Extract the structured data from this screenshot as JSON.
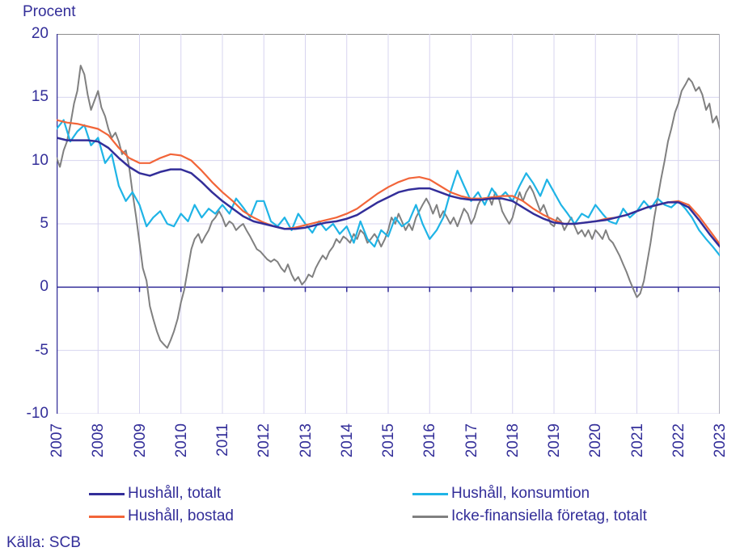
{
  "chart": {
    "type": "line",
    "y_title": "Procent",
    "source_label": "Källa: SCB",
    "background_color": "#ffffff",
    "grid_color": "#d7d4ef",
    "axis_color": "#332e99",
    "text_color": "#332e99",
    "plot_border_color": "#8c8c8c",
    "font_size": 19,
    "line_width": 2.2,
    "ylim": [
      -10,
      20
    ],
    "ytick_step": 5,
    "x_range": [
      2007,
      2023
    ],
    "x_categories": [
      "2007",
      "2008",
      "2009",
      "2010",
      "2011",
      "2012",
      "2013",
      "2014",
      "2015",
      "2016",
      "2017",
      "2018",
      "2019",
      "2020",
      "2021",
      "2022",
      "2023"
    ],
    "legend_position": "bottom",
    "series": [
      {
        "id": "hushall_totalt",
        "label": "Hushåll, totalt",
        "color": "#332e99",
        "line_width": 2.5,
        "x": [
          2007.0,
          2007.25,
          2007.5,
          2007.75,
          2008.0,
          2008.25,
          2008.5,
          2008.75,
          2009.0,
          2009.25,
          2009.5,
          2009.75,
          2010.0,
          2010.25,
          2010.5,
          2010.75,
          2011.0,
          2011.25,
          2011.5,
          2011.75,
          2012.0,
          2012.25,
          2012.5,
          2012.75,
          2013.0,
          2013.25,
          2013.5,
          2013.75,
          2014.0,
          2014.25,
          2014.5,
          2014.75,
          2015.0,
          2015.25,
          2015.5,
          2015.75,
          2016.0,
          2016.25,
          2016.5,
          2016.75,
          2017.0,
          2017.25,
          2017.5,
          2017.75,
          2018.0,
          2018.25,
          2018.5,
          2018.75,
          2019.0,
          2019.25,
          2019.5,
          2019.75,
          2020.0,
          2020.25,
          2020.5,
          2020.75,
          2021.0,
          2021.25,
          2021.5,
          2021.75,
          2022.0,
          2022.25,
          2022.5,
          2022.75,
          2023.0
        ],
        "y": [
          11.8,
          11.6,
          11.6,
          11.6,
          11.5,
          11.0,
          10.2,
          9.5,
          9.0,
          8.8,
          9.1,
          9.3,
          9.3,
          9.0,
          8.3,
          7.5,
          6.8,
          6.2,
          5.6,
          5.2,
          5.0,
          4.8,
          4.6,
          4.6,
          4.7,
          4.9,
          5.1,
          5.2,
          5.4,
          5.7,
          6.2,
          6.7,
          7.1,
          7.5,
          7.7,
          7.8,
          7.8,
          7.5,
          7.2,
          7.0,
          6.9,
          6.9,
          7.0,
          7.0,
          6.8,
          6.3,
          5.8,
          5.4,
          5.1,
          5.0,
          5.0,
          5.1,
          5.2,
          5.3,
          5.5,
          5.7,
          6.0,
          6.3,
          6.5,
          6.7,
          6.7,
          6.3,
          5.3,
          4.2,
          3.2
        ]
      },
      {
        "id": "hushall_konsumtion",
        "label": "Hushåll, konsumtion",
        "color": "#1fb4e6",
        "line_width": 2.2,
        "x": [
          2007.0,
          2007.17,
          2007.33,
          2007.5,
          2007.67,
          2007.83,
          2008.0,
          2008.17,
          2008.33,
          2008.5,
          2008.67,
          2008.83,
          2009.0,
          2009.17,
          2009.33,
          2009.5,
          2009.67,
          2009.83,
          2010.0,
          2010.17,
          2010.33,
          2010.5,
          2010.67,
          2010.83,
          2011.0,
          2011.17,
          2011.33,
          2011.5,
          2011.67,
          2011.83,
          2012.0,
          2012.17,
          2012.33,
          2012.5,
          2012.67,
          2012.83,
          2013.0,
          2013.17,
          2013.33,
          2013.5,
          2013.67,
          2013.83,
          2014.0,
          2014.17,
          2014.33,
          2014.5,
          2014.67,
          2014.83,
          2015.0,
          2015.17,
          2015.33,
          2015.5,
          2015.67,
          2015.83,
          2016.0,
          2016.17,
          2016.33,
          2016.5,
          2016.67,
          2016.83,
          2017.0,
          2017.17,
          2017.33,
          2017.5,
          2017.67,
          2017.83,
          2018.0,
          2018.17,
          2018.33,
          2018.5,
          2018.67,
          2018.83,
          2019.0,
          2019.17,
          2019.33,
          2019.5,
          2019.67,
          2019.83,
          2020.0,
          2020.17,
          2020.33,
          2020.5,
          2020.67,
          2020.83,
          2021.0,
          2021.17,
          2021.33,
          2021.5,
          2021.67,
          2021.83,
          2022.0,
          2022.17,
          2022.33,
          2022.5,
          2022.67,
          2022.83,
          2023.0
        ],
        "y": [
          12.5,
          13.2,
          11.5,
          12.3,
          12.8,
          11.2,
          11.8,
          9.8,
          10.5,
          8.0,
          6.8,
          7.5,
          6.5,
          4.8,
          5.5,
          6.0,
          5.0,
          4.8,
          5.8,
          5.2,
          6.5,
          5.5,
          6.2,
          5.8,
          6.5,
          5.8,
          7.0,
          6.3,
          5.5,
          6.8,
          6.8,
          5.2,
          4.8,
          5.5,
          4.5,
          5.8,
          5.0,
          4.3,
          5.2,
          4.5,
          5.0,
          4.2,
          4.8,
          3.5,
          5.2,
          3.8,
          3.2,
          4.5,
          4.0,
          5.5,
          4.8,
          5.2,
          6.5,
          5.0,
          3.8,
          4.5,
          5.5,
          7.5,
          9.2,
          8.0,
          6.8,
          7.5,
          6.5,
          7.8,
          7.0,
          7.5,
          6.8,
          8.0,
          9.0,
          8.2,
          7.2,
          8.5,
          7.5,
          6.5,
          5.8,
          5.0,
          5.8,
          5.5,
          6.5,
          5.8,
          5.2,
          5.0,
          6.2,
          5.5,
          6.0,
          6.8,
          6.2,
          7.0,
          6.5,
          6.3,
          6.8,
          6.2,
          5.5,
          4.5,
          3.8,
          3.2,
          2.5
        ]
      },
      {
        "id": "hushall_bostad",
        "label": "Hushåll, bostad",
        "color": "#f26539",
        "line_width": 2.2,
        "x": [
          2007.0,
          2007.25,
          2007.5,
          2007.75,
          2008.0,
          2008.25,
          2008.5,
          2008.75,
          2009.0,
          2009.25,
          2009.5,
          2009.75,
          2010.0,
          2010.25,
          2010.5,
          2010.75,
          2011.0,
          2011.25,
          2011.5,
          2011.75,
          2012.0,
          2012.25,
          2012.5,
          2012.75,
          2013.0,
          2013.25,
          2013.5,
          2013.75,
          2014.0,
          2014.25,
          2014.5,
          2014.75,
          2015.0,
          2015.25,
          2015.5,
          2015.75,
          2016.0,
          2016.25,
          2016.5,
          2016.75,
          2017.0,
          2017.25,
          2017.5,
          2017.75,
          2018.0,
          2018.25,
          2018.5,
          2018.75,
          2019.0,
          2019.25,
          2019.5,
          2019.75,
          2020.0,
          2020.25,
          2020.5,
          2020.75,
          2021.0,
          2021.25,
          2021.5,
          2021.75,
          2022.0,
          2022.25,
          2022.5,
          2022.75,
          2023.0
        ],
        "y": [
          13.2,
          13.0,
          12.9,
          12.7,
          12.5,
          12.0,
          11.0,
          10.2,
          9.8,
          9.8,
          10.2,
          10.5,
          10.4,
          10.0,
          9.2,
          8.3,
          7.5,
          6.8,
          6.0,
          5.5,
          5.1,
          4.8,
          4.6,
          4.7,
          4.9,
          5.1,
          5.3,
          5.5,
          5.8,
          6.2,
          6.8,
          7.4,
          7.9,
          8.3,
          8.6,
          8.7,
          8.5,
          8.0,
          7.5,
          7.2,
          7.0,
          7.0,
          7.1,
          7.2,
          7.2,
          6.8,
          6.2,
          5.7,
          5.3,
          5.0,
          5.0,
          5.1,
          5.2,
          5.4,
          5.5,
          5.7,
          6.0,
          6.3,
          6.5,
          6.7,
          6.8,
          6.5,
          5.6,
          4.5,
          3.4
        ]
      },
      {
        "id": "icke_finansiella",
        "label": "Icke-finansiella företag, totalt",
        "color": "#808080",
        "line_width": 2.0,
        "x": [
          2007.0,
          2007.08,
          2007.17,
          2007.25,
          2007.33,
          2007.42,
          2007.5,
          2007.58,
          2007.67,
          2007.75,
          2007.83,
          2007.92,
          2008.0,
          2008.08,
          2008.17,
          2008.25,
          2008.33,
          2008.42,
          2008.5,
          2008.58,
          2008.67,
          2008.75,
          2008.83,
          2008.92,
          2009.0,
          2009.08,
          2009.17,
          2009.25,
          2009.33,
          2009.42,
          2009.5,
          2009.58,
          2009.67,
          2009.75,
          2009.83,
          2009.92,
          2010.0,
          2010.08,
          2010.17,
          2010.25,
          2010.33,
          2010.42,
          2010.5,
          2010.58,
          2010.67,
          2010.75,
          2010.83,
          2010.92,
          2011.0,
          2011.08,
          2011.17,
          2011.25,
          2011.33,
          2011.42,
          2011.5,
          2011.58,
          2011.67,
          2011.75,
          2011.83,
          2011.92,
          2012.0,
          2012.08,
          2012.17,
          2012.25,
          2012.33,
          2012.42,
          2012.5,
          2012.58,
          2012.67,
          2012.75,
          2012.83,
          2012.92,
          2013.0,
          2013.08,
          2013.17,
          2013.25,
          2013.33,
          2013.42,
          2013.5,
          2013.58,
          2013.67,
          2013.75,
          2013.83,
          2013.92,
          2014.0,
          2014.08,
          2014.17,
          2014.25,
          2014.33,
          2014.42,
          2014.5,
          2014.58,
          2014.67,
          2014.75,
          2014.83,
          2014.92,
          2015.0,
          2015.08,
          2015.17,
          2015.25,
          2015.33,
          2015.42,
          2015.5,
          2015.58,
          2015.67,
          2015.75,
          2015.83,
          2015.92,
          2016.0,
          2016.08,
          2016.17,
          2016.25,
          2016.33,
          2016.42,
          2016.5,
          2016.58,
          2016.67,
          2016.75,
          2016.83,
          2016.92,
          2017.0,
          2017.08,
          2017.17,
          2017.25,
          2017.33,
          2017.42,
          2017.5,
          2017.58,
          2017.67,
          2017.75,
          2017.83,
          2017.92,
          2018.0,
          2018.08,
          2018.17,
          2018.25,
          2018.33,
          2018.42,
          2018.5,
          2018.58,
          2018.67,
          2018.75,
          2018.83,
          2018.92,
          2019.0,
          2019.08,
          2019.17,
          2019.25,
          2019.33,
          2019.42,
          2019.5,
          2019.58,
          2019.67,
          2019.75,
          2019.83,
          2019.92,
          2020.0,
          2020.08,
          2020.17,
          2020.25,
          2020.33,
          2020.42,
          2020.5,
          2020.58,
          2020.67,
          2020.75,
          2020.83,
          2020.92,
          2021.0,
          2021.08,
          2021.17,
          2021.25,
          2021.33,
          2021.42,
          2021.5,
          2021.58,
          2021.67,
          2021.75,
          2021.83,
          2021.92,
          2022.0,
          2022.08,
          2022.17,
          2022.25,
          2022.33,
          2022.42,
          2022.5,
          2022.58,
          2022.67,
          2022.75,
          2022.83,
          2022.92,
          2023.0
        ],
        "y": [
          10.2,
          9.5,
          10.8,
          11.5,
          12.8,
          14.5,
          15.5,
          17.5,
          16.8,
          15.2,
          14.0,
          14.8,
          15.5,
          14.2,
          13.5,
          12.5,
          11.8,
          12.2,
          11.5,
          10.5,
          10.8,
          9.5,
          7.5,
          5.5,
          3.5,
          1.5,
          0.5,
          -1.5,
          -2.5,
          -3.5,
          -4.2,
          -4.5,
          -4.8,
          -4.2,
          -3.5,
          -2.5,
          -1.2,
          -0.2,
          1.5,
          3.0,
          3.8,
          4.2,
          3.5,
          4.0,
          4.5,
          5.2,
          5.5,
          6.0,
          5.5,
          4.8,
          5.2,
          5.0,
          4.5,
          4.8,
          5.0,
          4.5,
          4.0,
          3.5,
          3.0,
          2.8,
          2.5,
          2.2,
          2.0,
          2.2,
          2.0,
          1.5,
          1.2,
          1.8,
          1.0,
          0.5,
          0.8,
          0.2,
          0.5,
          1.0,
          0.8,
          1.5,
          2.0,
          2.5,
          2.2,
          2.8,
          3.2,
          3.8,
          3.5,
          4.0,
          3.8,
          3.5,
          4.2,
          3.8,
          4.5,
          4.2,
          3.5,
          3.8,
          4.2,
          3.8,
          3.2,
          3.8,
          4.5,
          5.5,
          5.0,
          5.8,
          5.2,
          4.5,
          5.0,
          4.5,
          5.5,
          6.0,
          6.5,
          7.0,
          6.5,
          5.8,
          6.5,
          5.5,
          6.0,
          5.5,
          5.0,
          5.5,
          4.8,
          5.5,
          6.2,
          5.8,
          5.0,
          5.5,
          6.5,
          7.0,
          6.5,
          7.2,
          6.5,
          7.5,
          7.0,
          6.0,
          5.5,
          5.0,
          5.5,
          6.5,
          7.5,
          6.8,
          7.5,
          8.0,
          7.5,
          6.8,
          6.0,
          6.5,
          5.8,
          5.0,
          4.8,
          5.5,
          5.2,
          4.5,
          5.0,
          5.5,
          4.8,
          4.2,
          4.5,
          4.0,
          4.5,
          3.8,
          4.5,
          4.2,
          3.8,
          4.5,
          3.8,
          3.5,
          3.0,
          2.5,
          1.8,
          1.2,
          0.5,
          -0.2,
          -0.8,
          -0.5,
          0.5,
          2.0,
          3.5,
          5.5,
          7.0,
          8.5,
          10.0,
          11.5,
          12.5,
          13.8,
          14.5,
          15.5,
          16.0,
          16.5,
          16.2,
          15.5,
          15.8,
          15.2,
          14.0,
          14.5,
          13.0,
          13.5,
          12.5
        ]
      }
    ]
  }
}
